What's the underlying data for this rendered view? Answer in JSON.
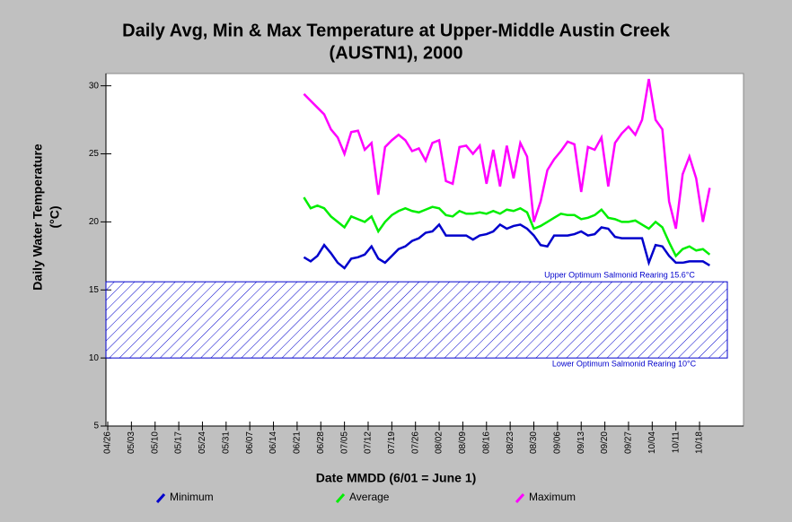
{
  "chart_data": {
    "type": "line",
    "title": [
      "Daily Avg, Min & Max Temperature at Upper-Middle Austin Creek",
      "(AUSTN1), 2000"
    ],
    "x_label": "Date MMDD (6/01 = June 1)",
    "y_label": [
      "Daily Water Temperature",
      "(°C)"
    ],
    "x": [
      "06/23",
      "06/25",
      "06/27",
      "06/29",
      "07/01",
      "07/03",
      "07/05",
      "07/07",
      "07/09",
      "07/11",
      "07/13",
      "07/15",
      "07/17",
      "07/19",
      "07/21",
      "07/23",
      "07/25",
      "07/27",
      "07/29",
      "07/31",
      "08/02",
      "08/04",
      "08/06",
      "08/08",
      "08/10",
      "08/12",
      "08/14",
      "08/16",
      "08/18",
      "08/20",
      "08/22",
      "08/24",
      "08/26",
      "08/28",
      "08/30",
      "09/01",
      "09/03",
      "09/05",
      "09/07",
      "09/09",
      "09/11",
      "09/13",
      "09/15",
      "09/17",
      "09/19",
      "09/21",
      "09/23",
      "09/25",
      "09/27",
      "09/29",
      "10/01",
      "10/03",
      "10/05",
      "10/07",
      "10/09",
      "10/11",
      "10/13",
      "10/15",
      "10/17",
      "10/19",
      "10/21"
    ],
    "series": [
      {
        "name": "Minimum",
        "color": "#0000cc",
        "values": [
          17.4,
          17.1,
          17.5,
          18.3,
          17.7,
          17.0,
          16.6,
          17.3,
          17.4,
          17.6,
          18.2,
          17.3,
          17.0,
          17.5,
          18.0,
          18.2,
          18.6,
          18.8,
          19.2,
          19.3,
          19.8,
          19.0,
          19.0,
          19.0,
          19.0,
          18.7,
          19.0,
          19.1,
          19.3,
          19.8,
          19.5,
          19.7,
          19.8,
          19.5,
          19.0,
          18.3,
          18.2,
          19.0,
          19.0,
          19.0,
          19.1,
          19.3,
          19.0,
          19.1,
          19.6,
          19.5,
          18.9,
          18.8,
          18.8,
          18.8,
          18.8,
          17.0,
          18.3,
          18.2,
          17.5,
          17.0,
          17.0,
          17.1,
          17.1,
          17.1,
          16.8
        ]
      },
      {
        "name": "Average",
        "color": "#00ee00",
        "values": [
          21.8,
          21.0,
          21.2,
          21.0,
          20.4,
          20.0,
          19.6,
          20.4,
          20.2,
          20.0,
          20.4,
          19.3,
          20.0,
          20.5,
          20.8,
          21.0,
          20.8,
          20.7,
          20.9,
          21.1,
          21.0,
          20.5,
          20.4,
          20.8,
          20.6,
          20.6,
          20.7,
          20.6,
          20.8,
          20.6,
          20.9,
          20.8,
          21.0,
          20.7,
          19.5,
          19.7,
          20.0,
          20.3,
          20.6,
          20.5,
          20.5,
          20.2,
          20.3,
          20.5,
          20.9,
          20.3,
          20.2,
          20.0,
          20.0,
          20.1,
          19.8,
          19.5,
          20.0,
          19.6,
          18.5,
          17.5,
          18.0,
          18.2,
          17.9,
          18.0,
          17.6
        ]
      },
      {
        "name": "Maximum",
        "color": "#ff00ff",
        "values": [
          29.4,
          28.9,
          28.4,
          27.9,
          26.8,
          26.2,
          25.0,
          26.6,
          26.7,
          25.3,
          25.8,
          22.0,
          25.5,
          26.0,
          26.4,
          26.0,
          25.2,
          25.4,
          24.5,
          25.8,
          26.0,
          23.0,
          22.8,
          25.5,
          25.6,
          25.0,
          25.6,
          22.8,
          25.3,
          22.6,
          25.6,
          23.2,
          25.8,
          24.8,
          20.0,
          21.5,
          23.8,
          24.6,
          25.2,
          25.9,
          25.7,
          22.2,
          25.5,
          25.3,
          26.2,
          22.6,
          25.8,
          26.5,
          27.0,
          26.4,
          27.5,
          30.5,
          27.5,
          26.8,
          21.5,
          19.5,
          23.5,
          24.8,
          23.2,
          20.0,
          22.5
        ]
      }
    ],
    "bands": [
      {
        "from": 10,
        "to": 15.6,
        "upper_label": "Upper Optimum Salmonid Rearing 15.6°C",
        "lower_label": "Lower Optimum Salmonid Rearing 10°C",
        "color": "#0000cc"
      }
    ],
    "xlim": [
      "04/26",
      "10/31"
    ],
    "xticks": [
      "04/26",
      "05/03",
      "05/10",
      "05/17",
      "05/24",
      "05/31",
      "06/07",
      "06/14",
      "06/21",
      "06/28",
      "07/05",
      "07/12",
      "07/19",
      "07/26",
      "08/02",
      "08/09",
      "08/16",
      "08/23",
      "08/30",
      "09/06",
      "09/13",
      "09/20",
      "09/27",
      "10/04",
      "10/11",
      "10/18"
    ],
    "ylim": [
      5,
      30.9
    ],
    "yticks": [
      5,
      10,
      15,
      20,
      25,
      30
    ],
    "legend": "bottom"
  }
}
